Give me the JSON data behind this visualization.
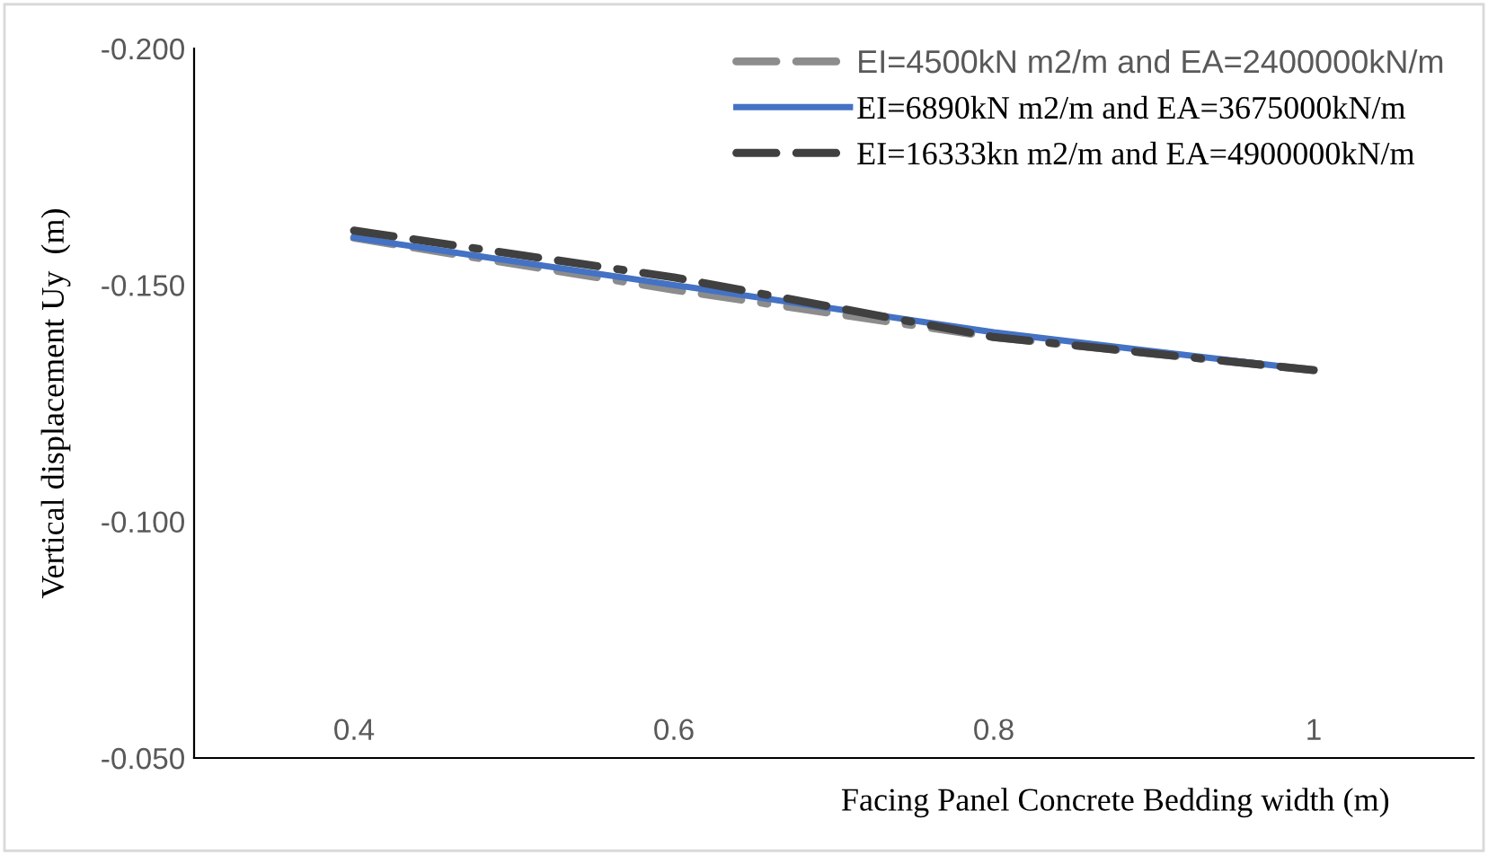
{
  "chart_data": {
    "type": "line",
    "xlabel": "Facing Panel Concrete Bedding width (m)",
    "ylabel": "Vertical displacement Uy  (m)",
    "categories": [
      "0.4",
      "0.6",
      "0.8",
      "1"
    ],
    "series": [
      {
        "name": "EI=4500kN m2/m and EA=2400000kN/m",
        "color": "#8c8c8c",
        "line_style": "dashed",
        "values": [
          -0.16,
          -0.149,
          -0.139,
          -0.132
        ]
      },
      {
        "name": "EI=6890kN m2/m and EA=3675000kN/m",
        "color": "#4472c4",
        "line_style": "solid",
        "values": [
          -0.16,
          -0.15,
          -0.14,
          -0.132
        ]
      },
      {
        "name": "EI=16333kn m2/m and EA=4900000kN/m",
        "color": "#404040",
        "line_style": "dashed",
        "values": [
          -0.1615,
          -0.1516,
          -0.139,
          -0.132
        ]
      }
    ],
    "ylim": [
      -0.05,
      -0.2
    ],
    "yticks": [
      {
        "value": -0.2,
        "label": "-0.200"
      },
      {
        "value": -0.15,
        "label": "-0.150"
      },
      {
        "value": -0.1,
        "label": "-0.100"
      },
      {
        "value": -0.05,
        "label": "-0.050"
      }
    ],
    "grid": false,
    "legend": "top right",
    "marker": "none"
  }
}
